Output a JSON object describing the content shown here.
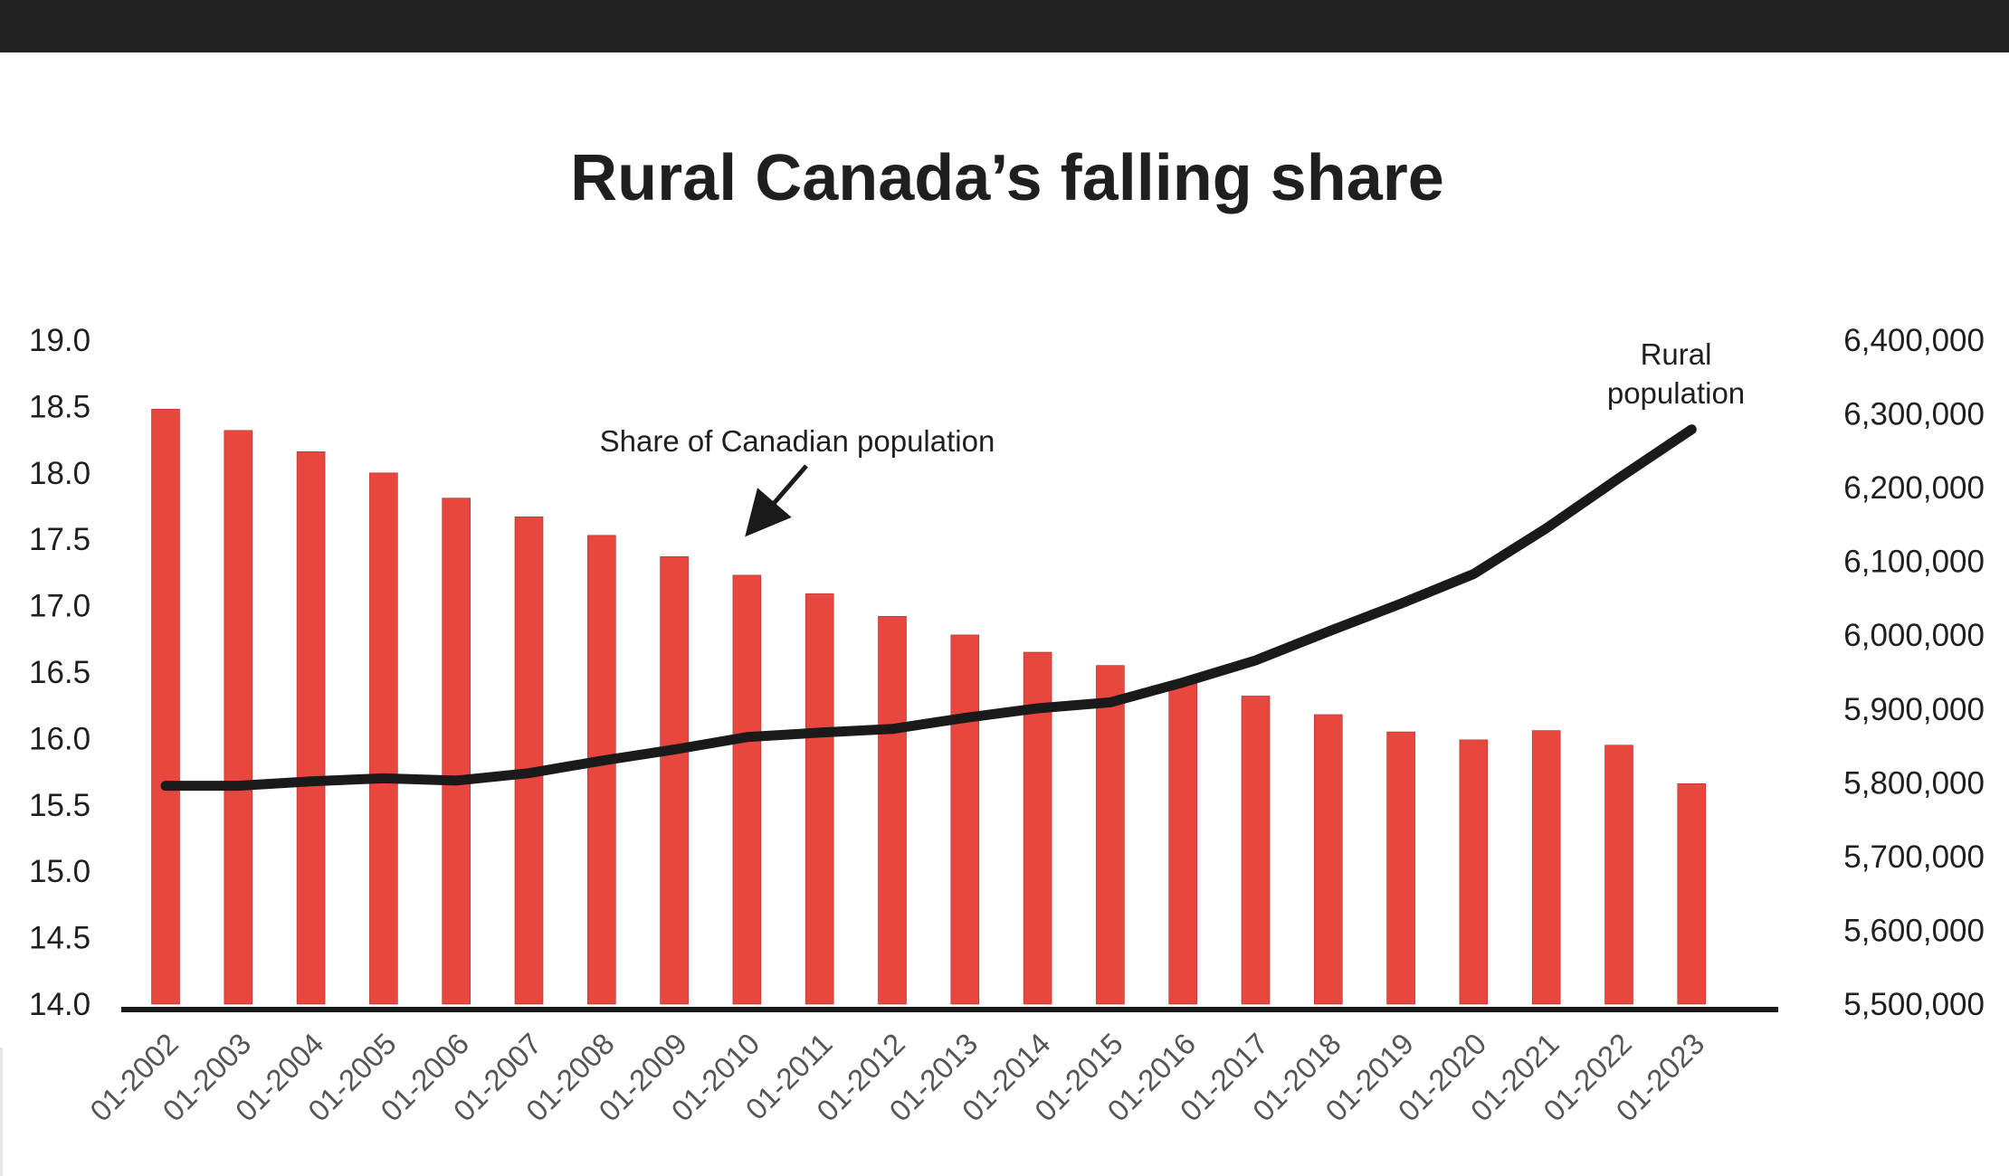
{
  "chart_data": {
    "type": "bar",
    "title": "Rural Canada’s falling share",
    "categories": [
      "01-2002",
      "01-2003",
      "01-2004",
      "01-2005",
      "01-2006",
      "01-2007",
      "01-2008",
      "01-2009",
      "01-2010",
      "01-2011",
      "01-2012",
      "01-2013",
      "01-2014",
      "01-2015",
      "01-2016",
      "01-2017",
      "01-2018",
      "01-2019",
      "01-2020",
      "01-2021",
      "01-2022",
      "01-2023"
    ],
    "series": [
      {
        "name": "Share of Canadian population",
        "type": "bar",
        "axis": "left",
        "color": "#e8473f",
        "values": [
          18.48,
          18.32,
          18.16,
          18.0,
          17.81,
          17.67,
          17.53,
          17.37,
          17.23,
          17.09,
          16.92,
          16.78,
          16.65,
          16.55,
          16.42,
          16.32,
          16.18,
          16.05,
          15.99,
          16.06,
          15.95,
          15.66
        ]
      },
      {
        "name": "Rural population",
        "type": "line",
        "axis": "right",
        "color": "#1a1a1a",
        "values": [
          5796000,
          5796000,
          5802000,
          5806000,
          5803000,
          5813000,
          5830000,
          5845000,
          5862000,
          5868000,
          5873000,
          5888000,
          5901000,
          5909000,
          5936000,
          5966000,
          6005000,
          6043000,
          6083000,
          6145000,
          6213000,
          6279000
        ]
      }
    ],
    "y_left": {
      "min": 14.0,
      "max": 19.0,
      "ticks": [
        "19.0",
        "18.5",
        "18.0",
        "17.5",
        "17.0",
        "16.5",
        "16.0",
        "15.5",
        "15.0",
        "14.5",
        "14.0"
      ]
    },
    "y_right": {
      "min": 5500000,
      "max": 6400000,
      "ticks": [
        "6,400,000",
        "6,300,000",
        "6,200,000",
        "6,100,000",
        "6,000,000",
        "5,900,000",
        "5,800,000",
        "5,700,000",
        "5,600,000",
        "5,500,000"
      ]
    },
    "annotations": {
      "share_label": "Share of Canadian population",
      "rural_label_line1": "Rural",
      "rural_label_line2": "population"
    },
    "grid": false,
    "legend": "none"
  }
}
